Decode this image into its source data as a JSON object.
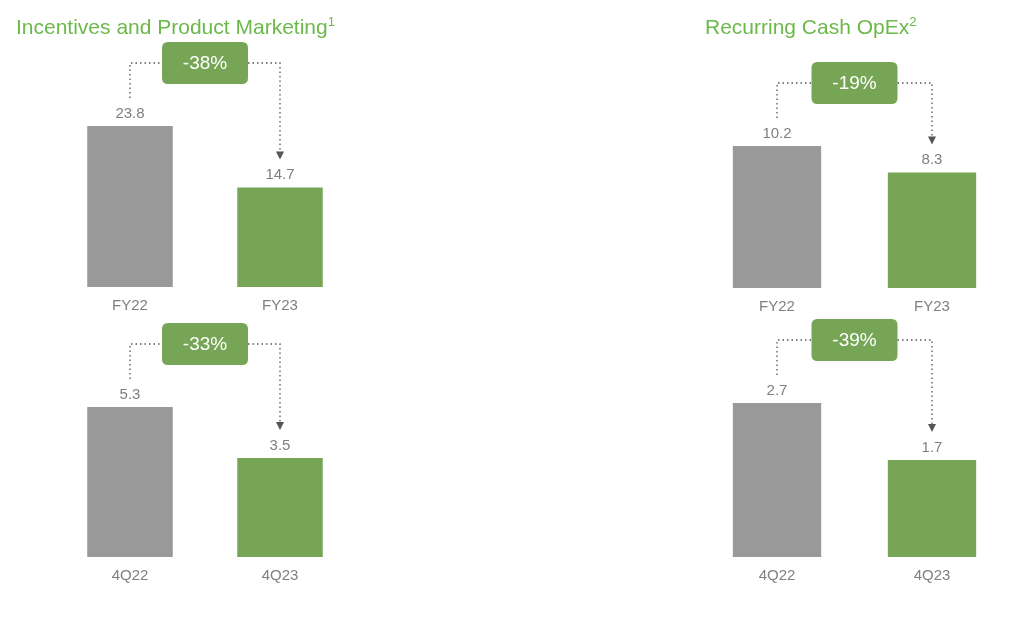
{
  "chart_data": [
    {
      "type": "bar",
      "title": "Incentives and Product Marketing$^{1}$",
      "categories": [
        "FY22",
        "FY23"
      ],
      "values": [
        23.8,
        14.7
      ],
      "colors": [
        "#999999",
        "#76a655"
      ],
      "data_labels": true,
      "annotations": [
        "-38%"
      ]
    },
    {
      "type": "bar",
      "title": "Recurring Cash OpEx$^{2}$",
      "categories": [
        "FY22",
        "FY23"
      ],
      "values": [
        10.2,
        8.3
      ],
      "colors": [
        "#999999",
        "#76a655"
      ],
      "data_labels": true,
      "annotations": [
        "-19%"
      ]
    },
    {
      "type": "bar",
      "categories": [
        "4Q22",
        "4Q23"
      ],
      "values": [
        5.3,
        3.5
      ],
      "colors": [
        "#999999",
        "#76a655"
      ],
      "data_labels": true,
      "annotations": [
        "-33%"
      ]
    },
    {
      "type": "bar",
      "categories": [
        "4Q22",
        "4Q23"
      ],
      "values": [
        2.7,
        1.7
      ],
      "colors": [
        "#999999",
        "#76a655"
      ],
      "data_labels": true,
      "annotations": [
        "-39%"
      ]
    }
  ]
}
